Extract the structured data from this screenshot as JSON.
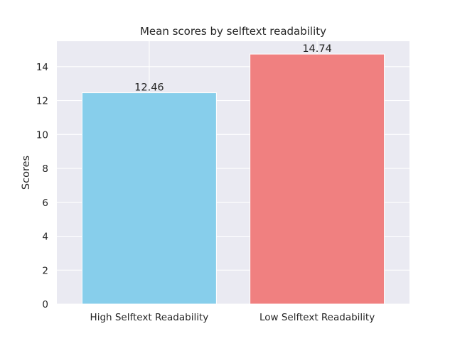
{
  "chart_data": {
    "type": "bar",
    "title": "Mean scores by selftext readability",
    "xlabel": "",
    "ylabel": "Scores",
    "categories": [
      "High Selftext Readability",
      "Low Selftext Readability"
    ],
    "values": [
      12.46,
      14.74
    ],
    "value_labels": [
      "12.46",
      "14.74"
    ],
    "bar_colors": [
      "#87CEEB",
      "#F08080"
    ],
    "ylim": [
      0,
      15.5
    ],
    "yticks": [
      0,
      2,
      4,
      6,
      8,
      10,
      12,
      14
    ],
    "ytick_labels": [
      "0",
      "2",
      "4",
      "6",
      "8",
      "10",
      "12",
      "14"
    ],
    "grid": true,
    "legend": "none",
    "colors": {
      "background": "#EAEAF2",
      "grid": "#FFFFFF",
      "text": "#262626"
    }
  }
}
